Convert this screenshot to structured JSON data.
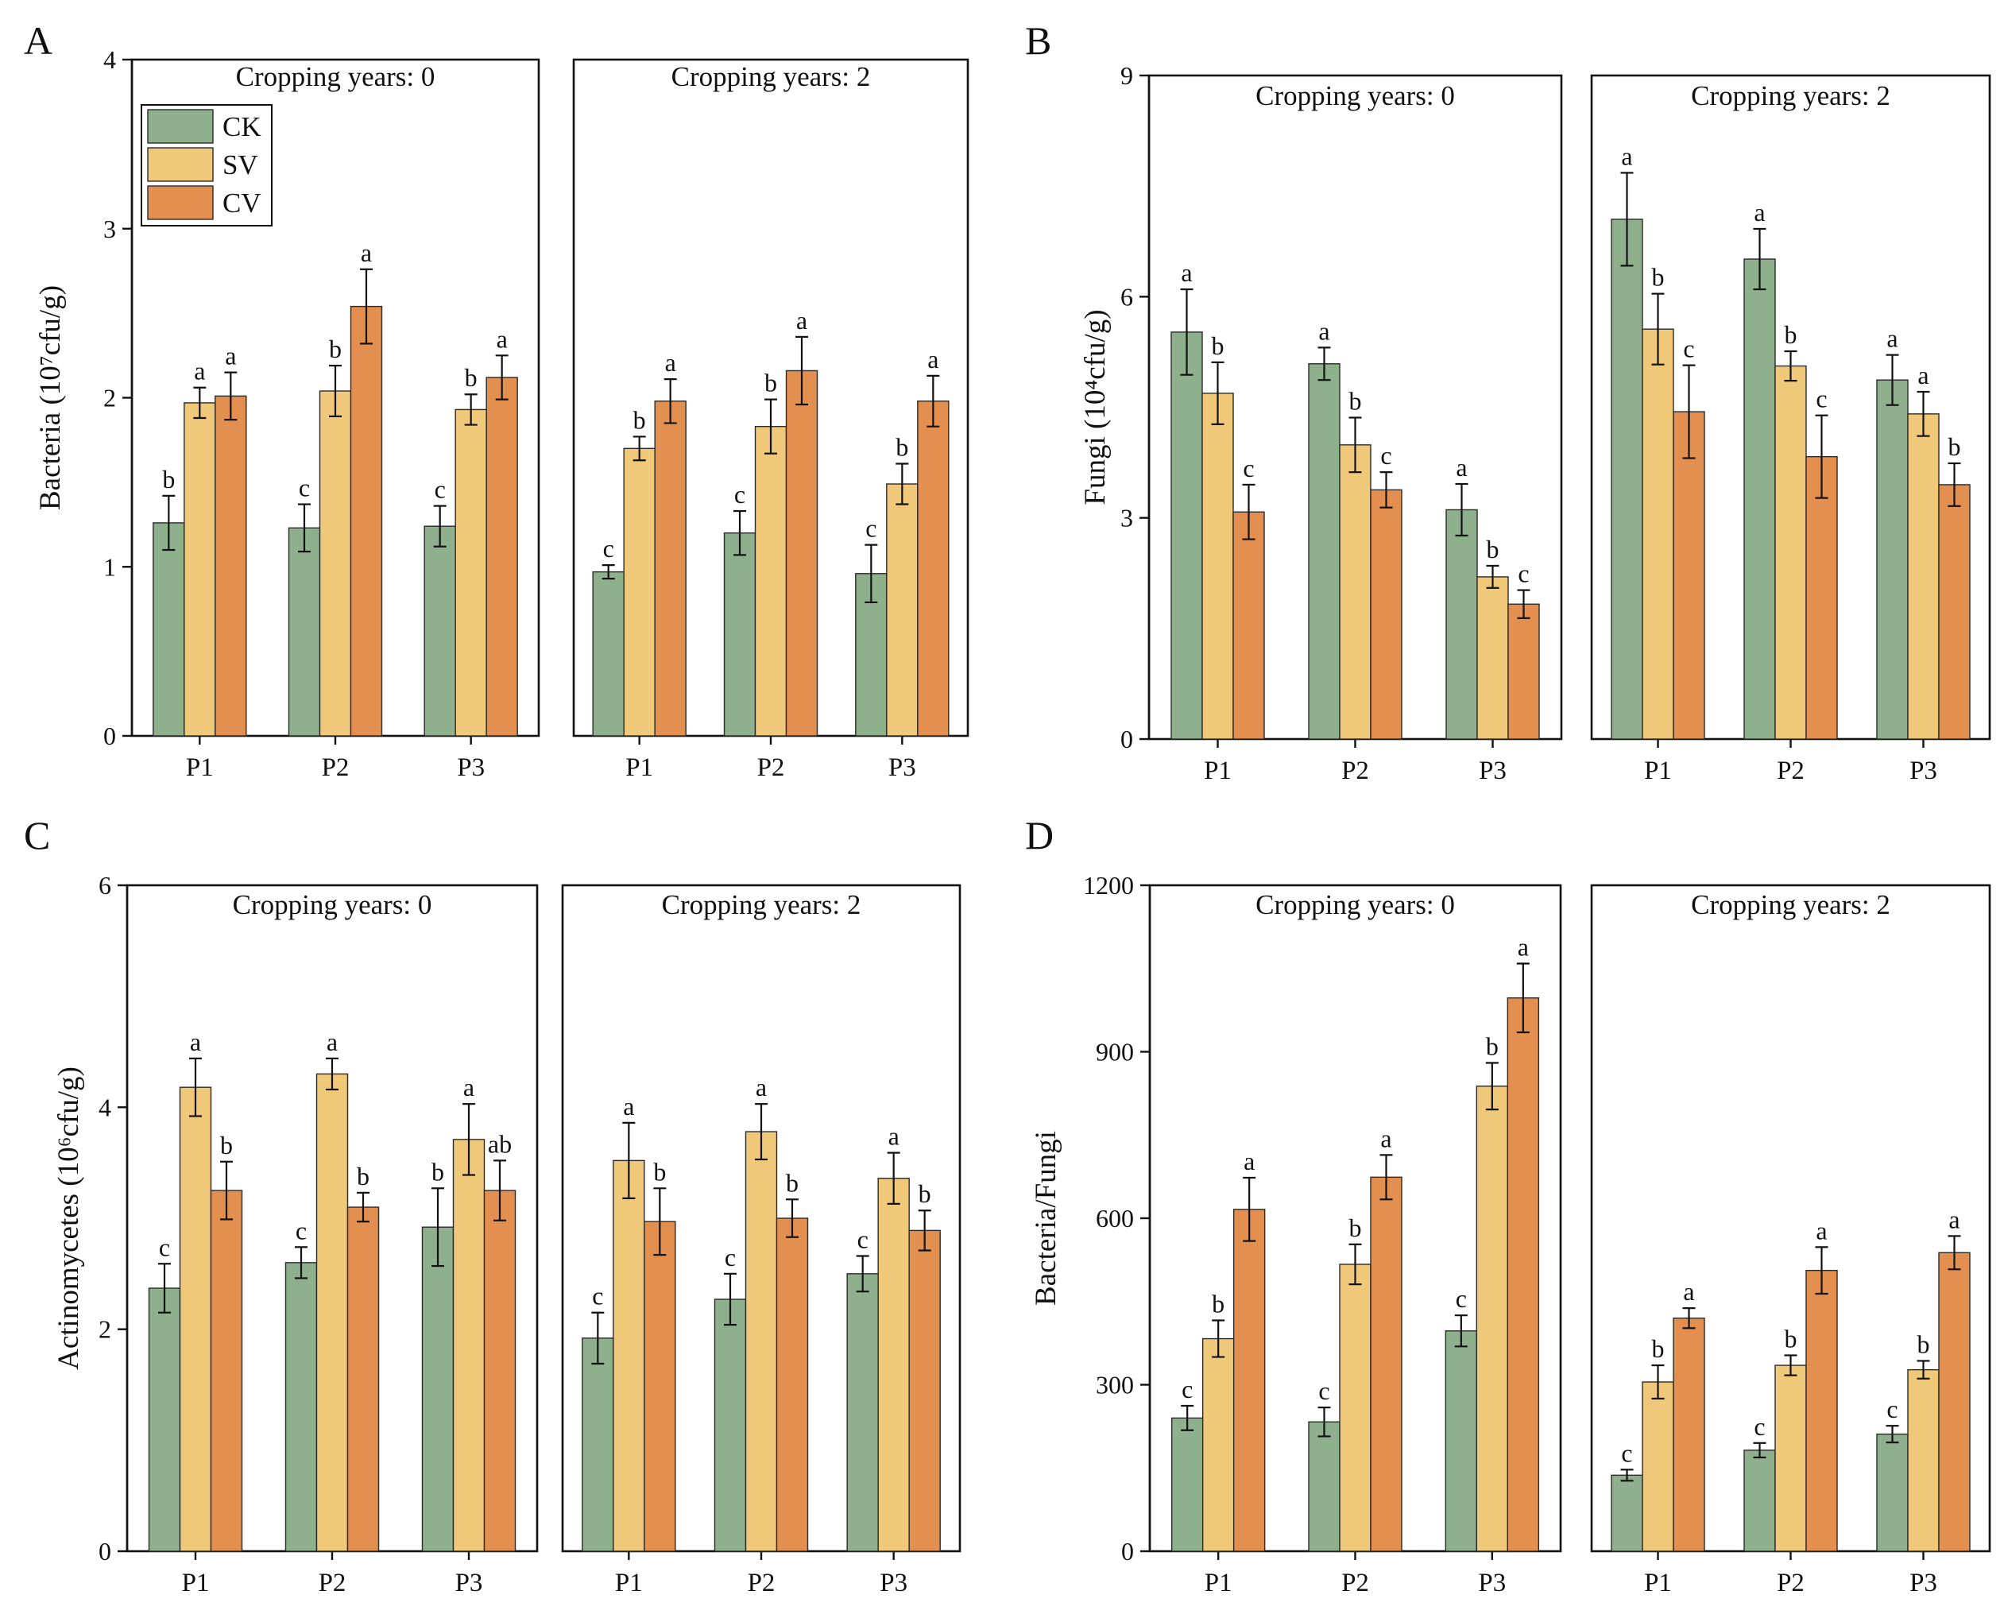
{
  "colors": {
    "CK": "#8fb08c",
    "SV": "#f0c879",
    "CV": "#e28f4f"
  },
  "chart_data": [
    {
      "type": "bar",
      "panel_label": "A",
      "ylabel": "Bacteria (10⁷cfu/g)",
      "ylim": [
        0,
        4
      ],
      "yticks": [
        0,
        1,
        2,
        3,
        4
      ],
      "categories": [
        "P1",
        "P2",
        "P3"
      ],
      "legend": [
        "CK",
        "SV",
        "CV"
      ],
      "facets": [
        {
          "title": "Cropping years: 0",
          "series": [
            {
              "name": "CK",
              "values": [
                1.26,
                1.23,
                1.24
              ],
              "errors": [
                0.16,
                0.14,
                0.12
              ],
              "letters": [
                "b",
                "c",
                "c"
              ]
            },
            {
              "name": "SV",
              "values": [
                1.97,
                2.04,
                1.93
              ],
              "errors": [
                0.09,
                0.15,
                0.09
              ],
              "letters": [
                "a",
                "b",
                "b"
              ]
            },
            {
              "name": "CV",
              "values": [
                2.01,
                2.54,
                2.12
              ],
              "errors": [
                0.14,
                0.22,
                0.13
              ],
              "letters": [
                "a",
                "a",
                "a"
              ]
            }
          ]
        },
        {
          "title": "Cropping years: 2",
          "series": [
            {
              "name": "CK",
              "values": [
                0.97,
                1.2,
                0.96
              ],
              "errors": [
                0.04,
                0.13,
                0.17
              ],
              "letters": [
                "c",
                "c",
                "c"
              ]
            },
            {
              "name": "SV",
              "values": [
                1.7,
                1.83,
                1.49
              ],
              "errors": [
                0.07,
                0.16,
                0.12
              ],
              "letters": [
                "b",
                "b",
                "b"
              ]
            },
            {
              "name": "CV",
              "values": [
                1.98,
                2.16,
                1.98
              ],
              "errors": [
                0.13,
                0.2,
                0.15
              ],
              "letters": [
                "a",
                "a",
                "a"
              ]
            }
          ]
        }
      ]
    },
    {
      "type": "bar",
      "panel_label": "B",
      "ylabel": "Fungi (10⁴cfu/g)",
      "ylim": [
        0,
        9
      ],
      "yticks": [
        0,
        3,
        6,
        9
      ],
      "categories": [
        "P1",
        "P2",
        "P3"
      ],
      "facets": [
        {
          "title": "Cropping years: 0",
          "series": [
            {
              "name": "CK",
              "values": [
                5.52,
                5.09,
                3.11
              ],
              "errors": [
                0.58,
                0.22,
                0.35
              ],
              "letters": [
                "a",
                "a",
                "a"
              ]
            },
            {
              "name": "SV",
              "values": [
                4.69,
                3.99,
                2.2
              ],
              "errors": [
                0.42,
                0.37,
                0.15
              ],
              "letters": [
                "b",
                "b",
                "b"
              ]
            },
            {
              "name": "CV",
              "values": [
                3.08,
                3.38,
                1.83
              ],
              "errors": [
                0.37,
                0.24,
                0.19
              ],
              "letters": [
                "c",
                "c",
                "c"
              ]
            }
          ]
        },
        {
          "title": "Cropping years: 2",
          "series": [
            {
              "name": "CK",
              "values": [
                7.05,
                6.51,
                4.87
              ],
              "errors": [
                0.63,
                0.41,
                0.34
              ],
              "letters": [
                "a",
                "a",
                "a"
              ]
            },
            {
              "name": "SV",
              "values": [
                5.56,
                5.06,
                4.41
              ],
              "errors": [
                0.48,
                0.2,
                0.3
              ],
              "letters": [
                "b",
                "b",
                "a"
              ]
            },
            {
              "name": "CV",
              "values": [
                4.44,
                3.83,
                3.45
              ],
              "errors": [
                0.63,
                0.56,
                0.29
              ],
              "letters": [
                "c",
                "c",
                "b"
              ]
            }
          ]
        }
      ]
    },
    {
      "type": "bar",
      "panel_label": "C",
      "ylabel": "Actinomycetes (10⁶cfu/g)",
      "ylim": [
        0,
        6
      ],
      "yticks": [
        0,
        2,
        4,
        6
      ],
      "categories": [
        "P1",
        "P2",
        "P3"
      ],
      "facets": [
        {
          "title": "Cropping years: 0",
          "series": [
            {
              "name": "CK",
              "values": [
                2.37,
                2.6,
                2.92
              ],
              "errors": [
                0.22,
                0.14,
                0.35
              ],
              "letters": [
                "c",
                "c",
                "b"
              ]
            },
            {
              "name": "SV",
              "values": [
                4.18,
                4.3,
                3.71
              ],
              "errors": [
                0.26,
                0.14,
                0.32
              ],
              "letters": [
                "a",
                "a",
                "a"
              ]
            },
            {
              "name": "CV",
              "values": [
                3.25,
                3.1,
                3.25
              ],
              "errors": [
                0.26,
                0.13,
                0.27
              ],
              "letters": [
                "b",
                "b",
                "ab"
              ]
            }
          ]
        },
        {
          "title": "Cropping years: 2",
          "series": [
            {
              "name": "CK",
              "values": [
                1.92,
                2.27,
                2.5
              ],
              "errors": [
                0.23,
                0.23,
                0.16
              ],
              "letters": [
                "c",
                "c",
                "c"
              ]
            },
            {
              "name": "SV",
              "values": [
                3.52,
                3.78,
                3.36
              ],
              "errors": [
                0.34,
                0.25,
                0.23
              ],
              "letters": [
                "a",
                "a",
                "a"
              ]
            },
            {
              "name": "CV",
              "values": [
                2.97,
                3.0,
                2.89
              ],
              "errors": [
                0.3,
                0.17,
                0.18
              ],
              "letters": [
                "b",
                "b",
                "b"
              ]
            }
          ]
        }
      ]
    },
    {
      "type": "bar",
      "panel_label": "D",
      "ylabel": "Bacteria/Fungi",
      "ylim": [
        0,
        1200
      ],
      "yticks": [
        0,
        300,
        600,
        900,
        1200
      ],
      "categories": [
        "P1",
        "P2",
        "P3"
      ],
      "facets": [
        {
          "title": "Cropping years: 0",
          "series": [
            {
              "name": "CK",
              "values": [
                240,
                233,
                397
              ],
              "errors": [
                22,
                26,
                28
              ],
              "letters": [
                "c",
                "c",
                "c"
              ]
            },
            {
              "name": "SV",
              "values": [
                383,
                517,
                838
              ],
              "errors": [
                33,
                36,
                42
              ],
              "letters": [
                "b",
                "b",
                "b"
              ]
            },
            {
              "name": "CV",
              "values": [
                616,
                674,
                997
              ],
              "errors": [
                57,
                40,
                62
              ],
              "letters": [
                "a",
                "a",
                "a"
              ]
            }
          ]
        },
        {
          "title": "Cropping years: 2",
          "series": [
            {
              "name": "CK",
              "values": [
                137,
                182,
                211
              ],
              "errors": [
                10,
                13,
                15
              ],
              "letters": [
                "c",
                "c",
                "c"
              ]
            },
            {
              "name": "SV",
              "values": [
                305,
                335,
                327
              ],
              "errors": [
                30,
                18,
                16
              ],
              "letters": [
                "b",
                "b",
                "b"
              ]
            },
            {
              "name": "CV",
              "values": [
                420,
                506,
                538
              ],
              "errors": [
                18,
                42,
                30
              ],
              "letters": [
                "a",
                "a",
                "a"
              ]
            }
          ]
        }
      ]
    }
  ]
}
